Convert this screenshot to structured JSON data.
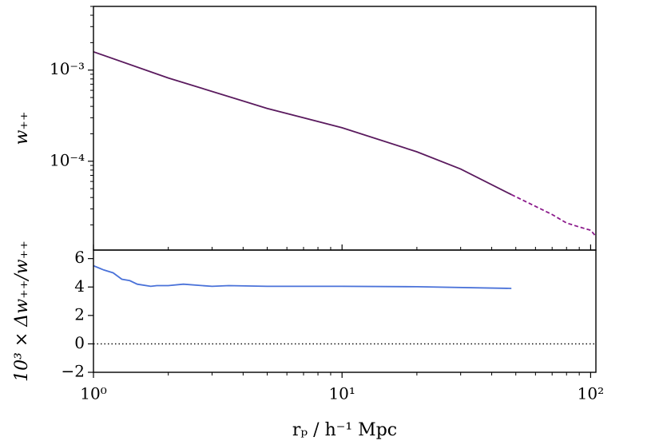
{
  "chart_data": [
    {
      "type": "line",
      "xlog": true,
      "ylog": true,
      "ylabel": "w₊₊",
      "xlim": [
        1,
        105
      ],
      "xticks": [
        1,
        10,
        100
      ],
      "show_xtick_labels": false,
      "ylim": [
        1.06e-05,
        0.005
      ],
      "yticks": [
        {
          "value": 0.001,
          "label": "10⁻³"
        },
        {
          "value": 0.0001,
          "label": "10⁻⁴"
        }
      ],
      "series": [
        {
          "color": "#5a1a5e",
          "dash": false,
          "x": [
            1,
            2,
            5,
            10,
            20,
            30,
            48
          ],
          "values": [
            0.00159,
            0.00082,
            0.00038,
            0.000233,
            0.000127,
            8.2e-05,
            4.3e-05
          ]
        },
        {
          "color": "#8b1a8b",
          "dash": true,
          "x": [
            48,
            60,
            70,
            80,
            90,
            100,
            105
          ],
          "values": [
            4.3e-05,
            3.2e-05,
            2.6e-05,
            2.1e-05,
            1.9e-05,
            1.75e-05,
            1.5e-05
          ]
        }
      ]
    },
    {
      "type": "line",
      "xlog": true,
      "ylog": false,
      "xlabel": "rₚ / h⁻¹ Mpc",
      "ylabel": "10³ × Δw₊₊/w₊₊",
      "xlim": [
        1,
        105
      ],
      "xticks": [
        {
          "value": 1,
          "label": "10⁰"
        },
        {
          "value": 10,
          "label": "10¹"
        },
        {
          "value": 100,
          "label": "10²"
        }
      ],
      "show_xtick_labels": true,
      "ylim": [
        -2,
        6.6
      ],
      "yticks": [
        {
          "value": -2,
          "label": "−2"
        },
        0,
        2,
        4,
        6
      ],
      "hline": 0,
      "series": [
        {
          "color": "#4a72d9",
          "dash": false,
          "x": [
            1,
            1.1,
            1.2,
            1.3,
            1.4,
            1.5,
            1.7,
            1.8,
            2,
            2.3,
            3,
            3.5,
            5,
            10,
            20,
            48
          ],
          "values": [
            5.5,
            5.2,
            5.0,
            4.55,
            4.45,
            4.2,
            4.05,
            4.1,
            4.1,
            4.2,
            4.05,
            4.1,
            4.05,
            4.05,
            4.02,
            3.9
          ]
        }
      ]
    }
  ]
}
